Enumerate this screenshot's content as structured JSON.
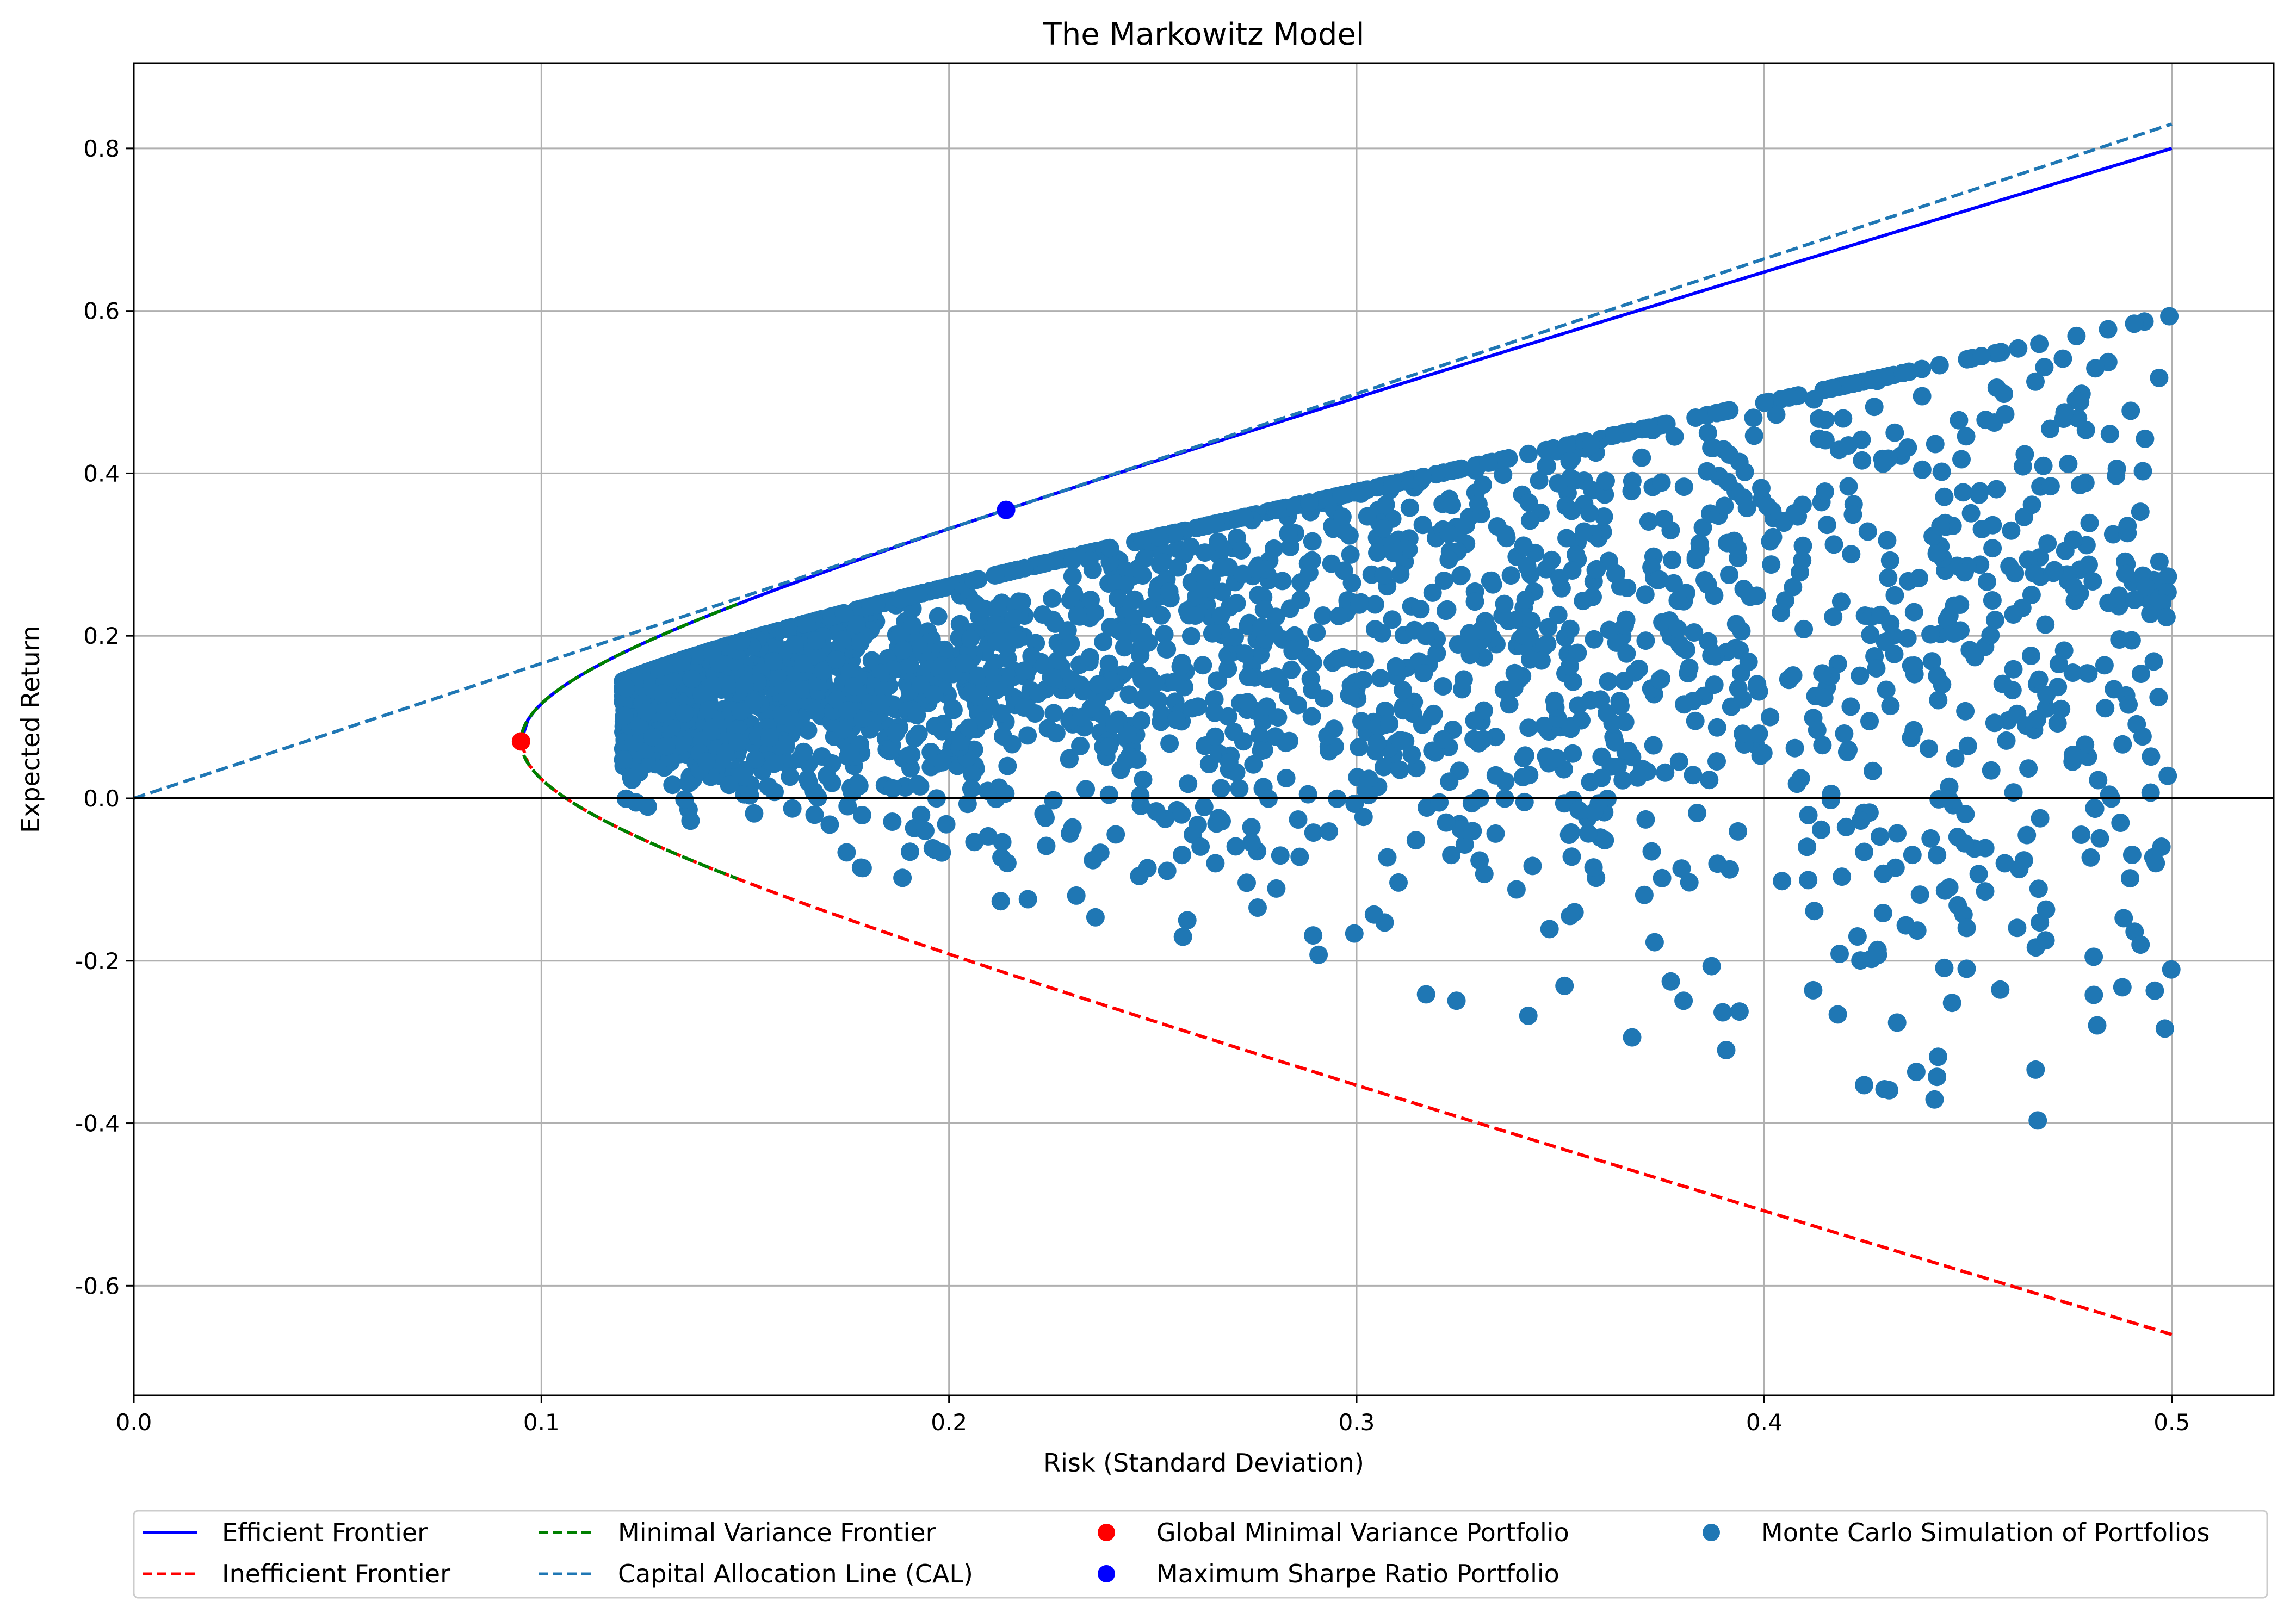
{
  "chart_data": {
    "type": "scatter",
    "title": "The Markowitz Model",
    "xlabel": "Risk (Standard Deviation)",
    "ylabel": "Expected Return",
    "xlim": [
      0.0,
      0.525
    ],
    "ylim": [
      -0.735,
      0.905
    ],
    "grid": true,
    "legend_position": "bottom-center",
    "x_ticks": [
      {
        "value": 0.0,
        "label": "0.0"
      },
      {
        "value": 0.1,
        "label": "0.1"
      },
      {
        "value": 0.2,
        "label": "0.2"
      },
      {
        "value": 0.3,
        "label": "0.3"
      },
      {
        "value": 0.4,
        "label": "0.4"
      },
      {
        "value": 0.5,
        "label": "0.5"
      }
    ],
    "y_ticks": [
      {
        "value": -0.6,
        "label": "-0.6"
      },
      {
        "value": -0.4,
        "label": "-0.4"
      },
      {
        "value": -0.2,
        "label": "-0.2"
      },
      {
        "value": 0.0,
        "label": "0.0"
      },
      {
        "value": 0.2,
        "label": "0.2"
      },
      {
        "value": 0.4,
        "label": "0.4"
      },
      {
        "value": 0.6,
        "label": "0.6"
      },
      {
        "value": 0.8,
        "label": "0.8"
      }
    ],
    "frontier": {
      "gmv_risk": 0.095,
      "gmv_return": 0.07,
      "max_risk": 0.5,
      "efficient_end_return": 0.8,
      "inefficient_end_return": -0.66
    },
    "cal": {
      "x": [
        0.0,
        0.5
      ],
      "y": [
        0.0,
        0.83
      ]
    },
    "gmv_point": {
      "x": 0.095,
      "y": 0.07
    },
    "max_sharpe_point": {
      "x": 0.214,
      "y": 0.355
    },
    "monte_carlo": {
      "num_points": 2600,
      "risk_range": [
        0.12,
        0.5
      ]
    },
    "series": [
      {
        "name": "Efficient Frontier",
        "color": "#0000ff",
        "style": "solid-line"
      },
      {
        "name": "Inefficient Frontier",
        "color": "#ff0000",
        "style": "dashed-line"
      },
      {
        "name": "Minimal Variance Frontier",
        "color": "#008000",
        "style": "dashed-line"
      },
      {
        "name": "Capital Allocation Line (CAL)",
        "color": "#1f77b4",
        "style": "dashed-line"
      },
      {
        "name": "Global Minimal Variance Portfolio",
        "color": "#ff0000",
        "style": "marker"
      },
      {
        "name": "Maximum Sharpe Ratio Portfolio",
        "color": "#0000ff",
        "style": "marker"
      },
      {
        "name": "Monte Carlo Simulation of Portfolios",
        "color": "#1f77b4",
        "style": "marker"
      }
    ]
  }
}
